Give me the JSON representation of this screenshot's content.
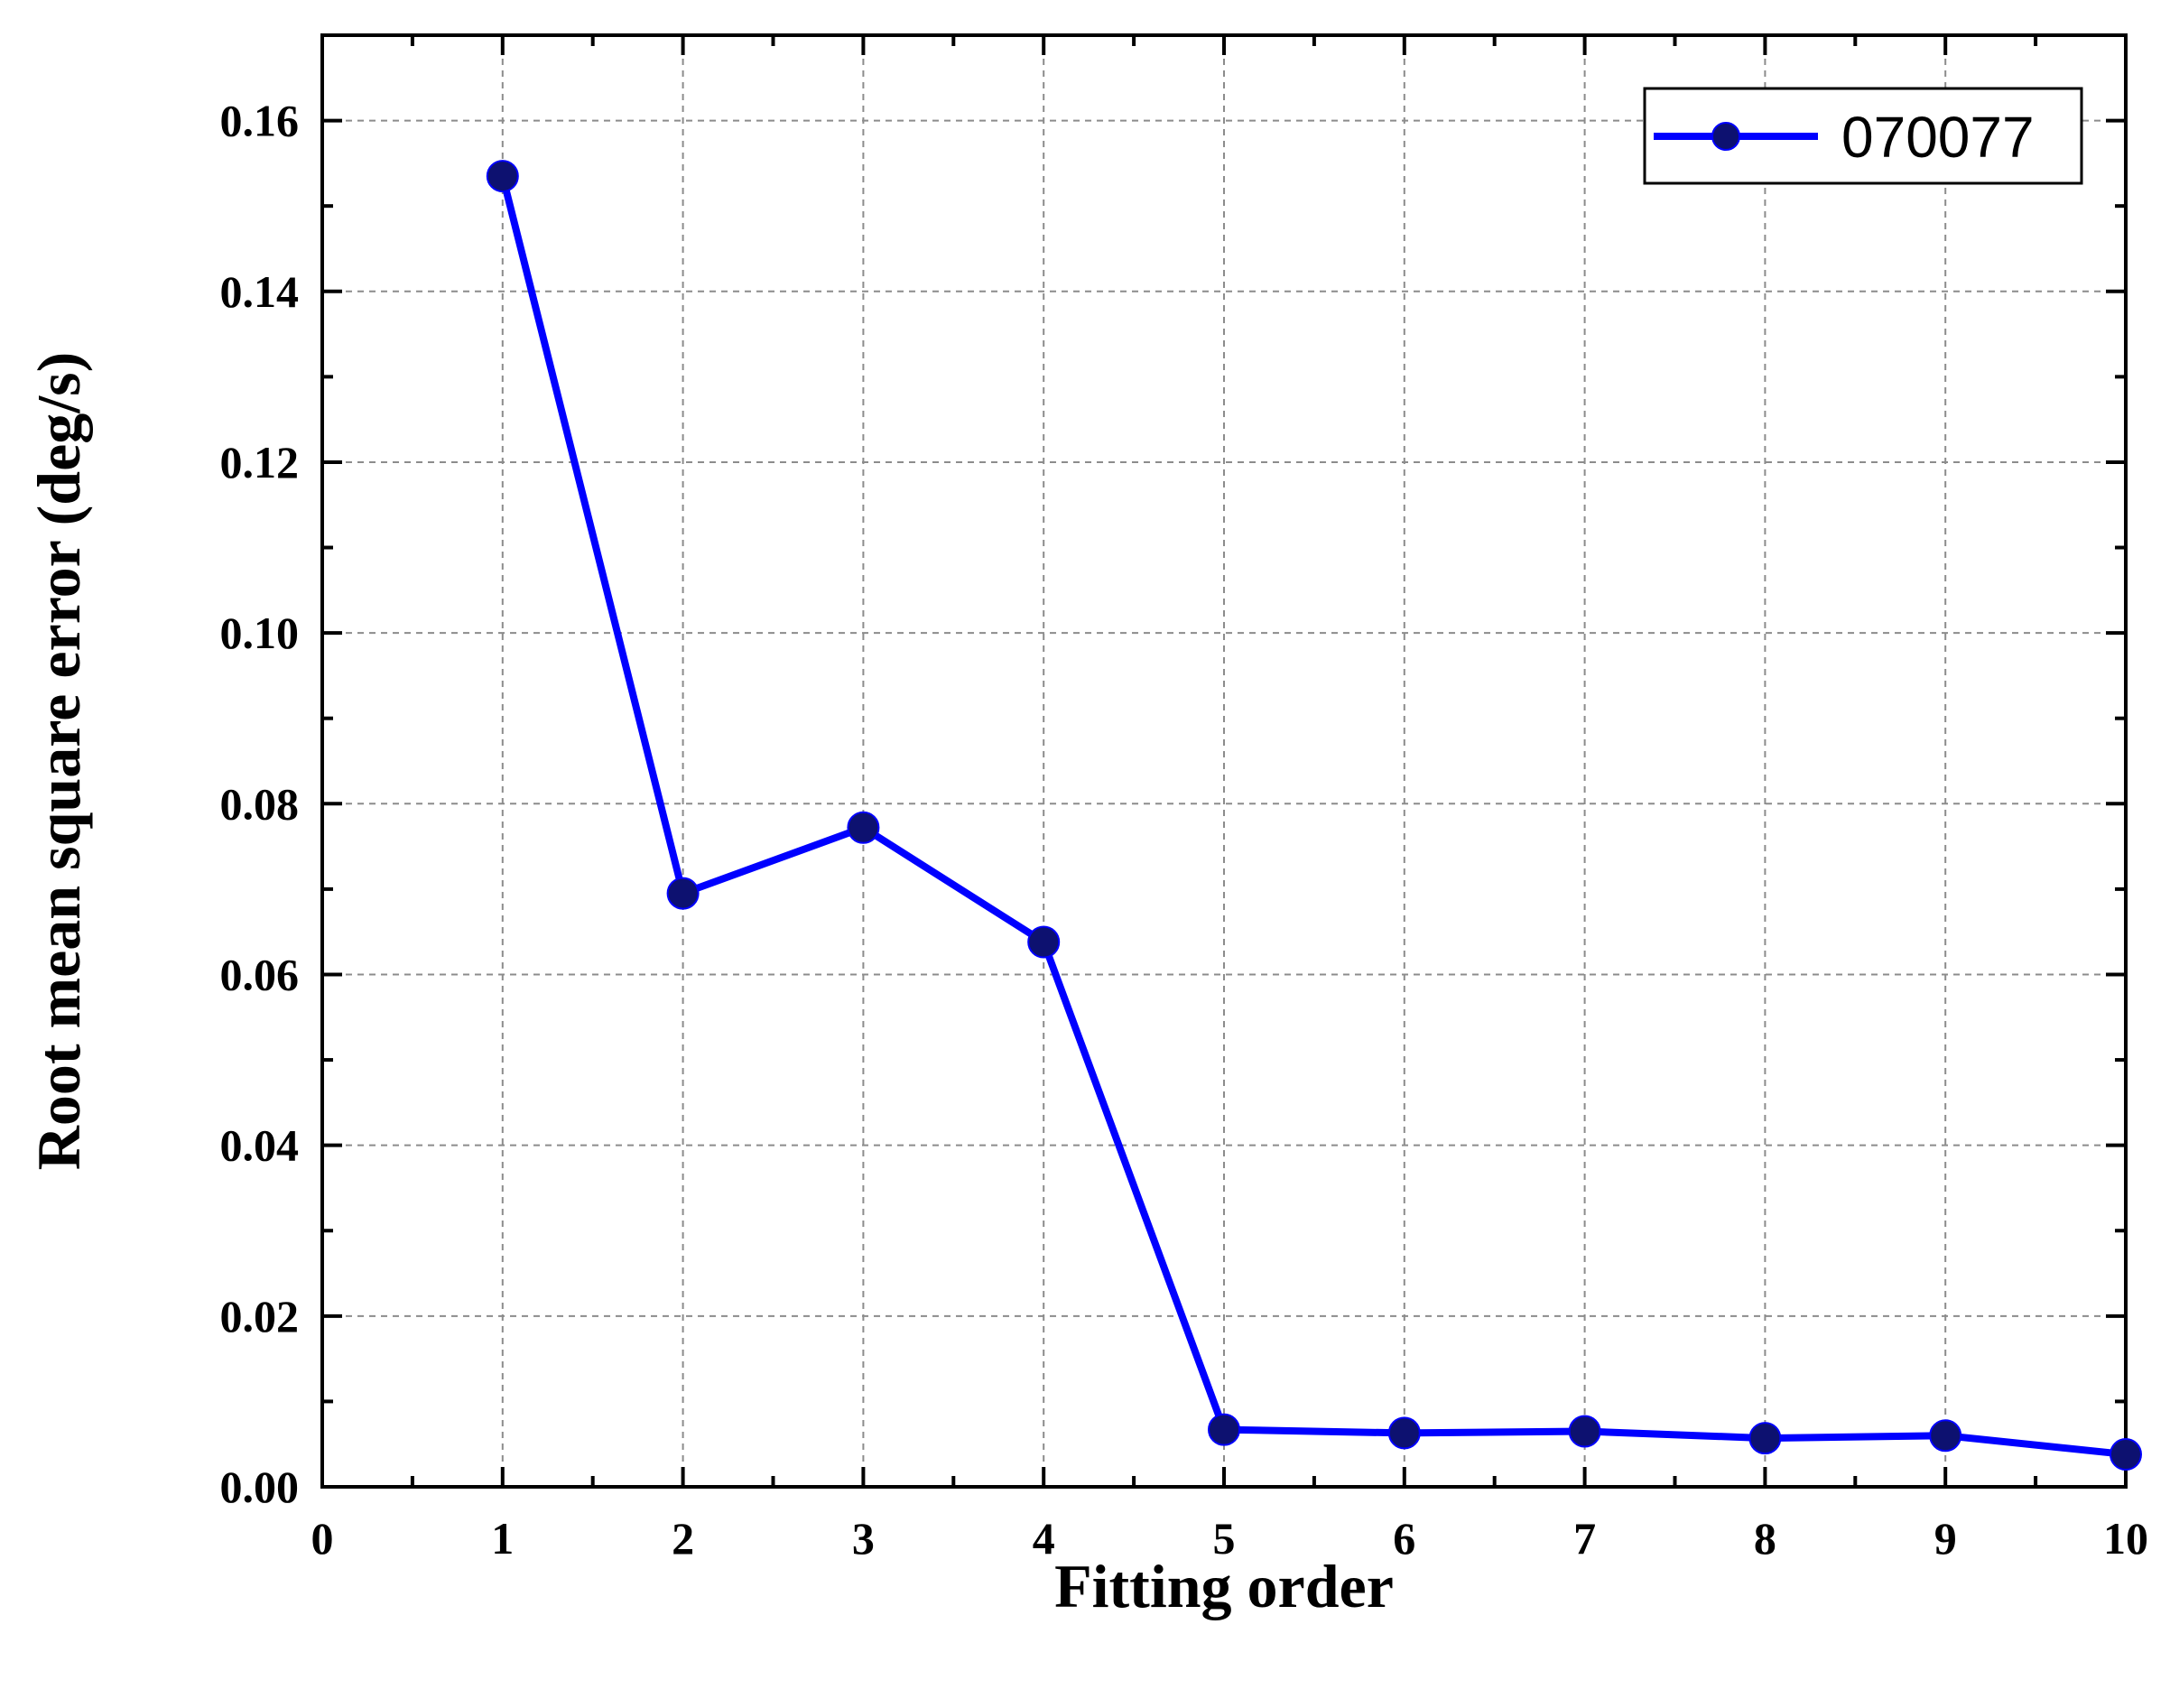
{
  "chart_data": {
    "type": "line",
    "title": "",
    "xlabel": "Fitting order",
    "ylabel": "Root mean square error (deg/s)",
    "xlim": [
      0,
      10
    ],
    "ylim": [
      0,
      0.17
    ],
    "x_ticks": [
      "0",
      "1",
      "2",
      "3",
      "4",
      "5",
      "6",
      "7",
      "8",
      "9",
      "10"
    ],
    "y_ticks": [
      "0.00",
      "0.02",
      "0.04",
      "0.06",
      "0.08",
      "0.10",
      "0.12",
      "0.14",
      "0.16"
    ],
    "grid": true,
    "legend_position": "top-right",
    "series": [
      {
        "name": "070077",
        "color": "#0000ff",
        "marker_color": "#0d1170",
        "x": [
          1,
          2,
          3,
          4,
          5,
          6,
          7,
          8,
          9,
          10
        ],
        "y": [
          0.1535,
          0.0695,
          0.0772,
          0.0638,
          0.0067,
          0.0063,
          0.0065,
          0.0057,
          0.006,
          0.0038
        ]
      }
    ]
  }
}
